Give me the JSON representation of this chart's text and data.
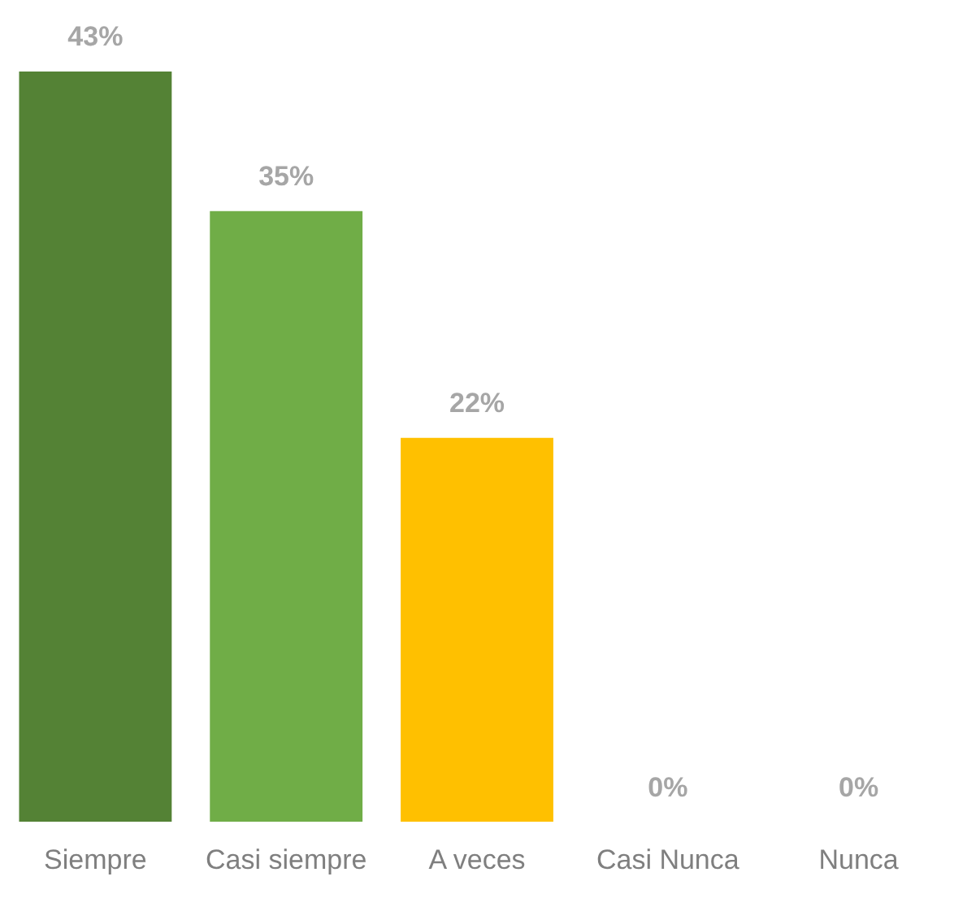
{
  "chart_data": {
    "type": "bar",
    "categories": [
      "Siempre",
      "Casi siempre",
      "A veces",
      "Casi Nunca",
      "Nunca"
    ],
    "values": [
      43,
      35,
      22,
      0,
      0
    ],
    "colors": [
      "#548235",
      "#70ad47",
      "#ffc000",
      "#a5a5a5",
      "#a5a5a5"
    ],
    "value_labels": [
      "43%",
      "35%",
      "22%",
      "0%",
      "0%"
    ],
    "grid": false,
    "legend": false
  }
}
